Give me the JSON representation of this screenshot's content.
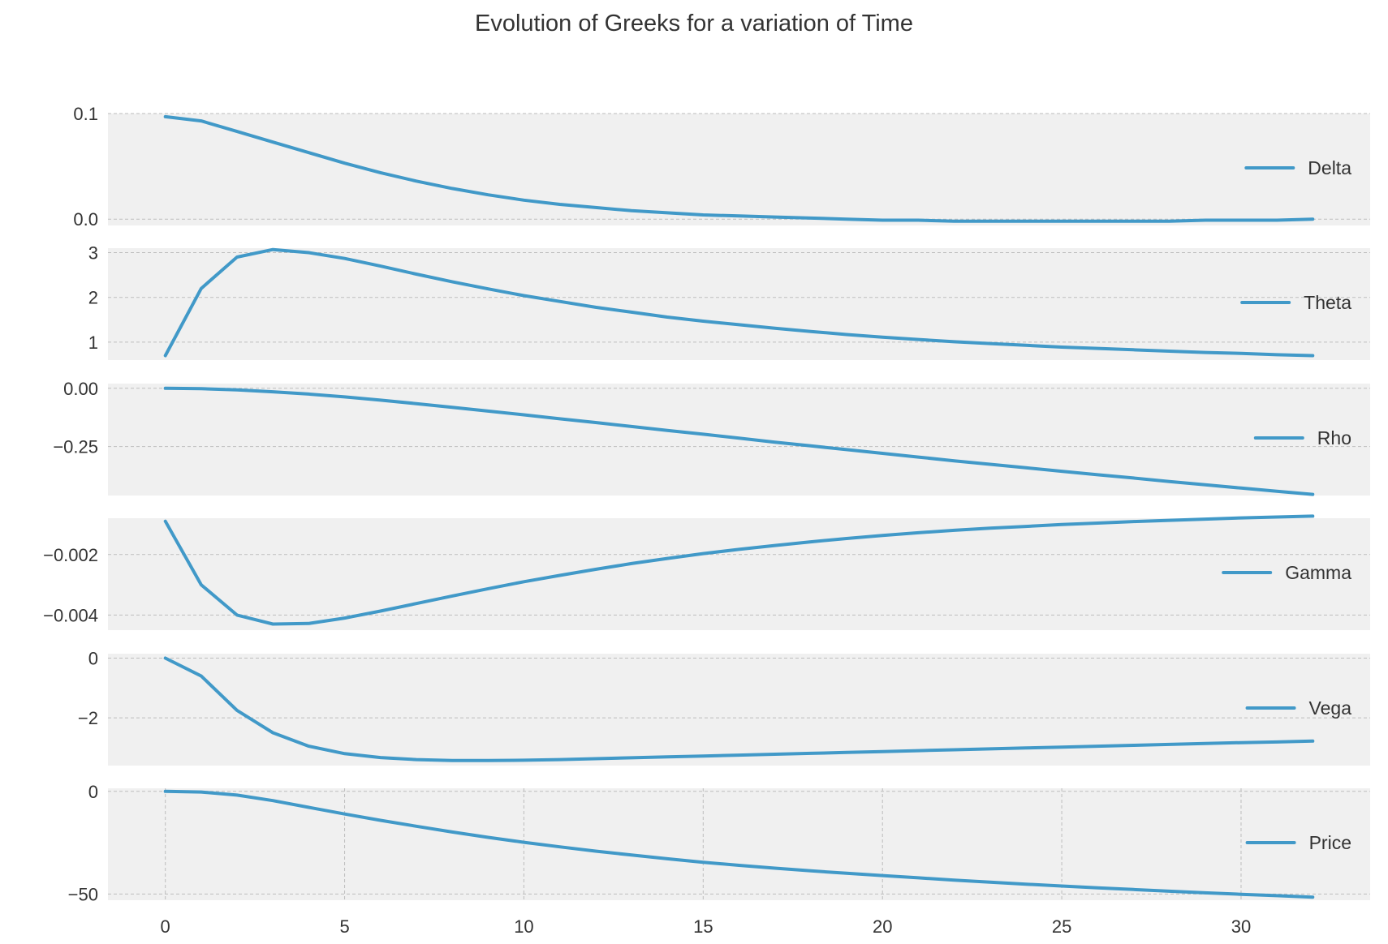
{
  "title": "Evolution of Greeks for a variation of Time",
  "colors": {
    "line": "#4199c8",
    "panel_bg": "#f0f0f0",
    "grid": "#bdbdbd",
    "text": "#333333"
  },
  "x_ticks": [
    0,
    5,
    10,
    15,
    20,
    25,
    30
  ],
  "chart_data": [
    {
      "type": "line",
      "series": [
        {
          "name": "Delta",
          "x": [
            0,
            1,
            2,
            3,
            4,
            5,
            6,
            7,
            8,
            9,
            10,
            11,
            12,
            13,
            14,
            15,
            16,
            17,
            18,
            19,
            20,
            21,
            22,
            23,
            24,
            25,
            26,
            27,
            28,
            29,
            30,
            31,
            32
          ],
          "values": [
            0.097,
            0.093,
            0.083,
            0.073,
            0.063,
            0.053,
            0.044,
            0.036,
            0.029,
            0.023,
            0.018,
            0.014,
            0.011,
            0.008,
            0.006,
            0.004,
            0.003,
            0.002,
            0.001,
            0.0,
            -0.001,
            -0.001,
            -0.002,
            -0.002,
            -0.002,
            -0.002,
            -0.002,
            -0.002,
            -0.002,
            -0.001,
            -0.001,
            -0.001,
            0.0
          ]
        }
      ],
      "yticks": [
        0.0,
        0.1
      ],
      "ytick_labels": [
        "0.0",
        "0.1"
      ],
      "ylim": [
        -0.006,
        0.1
      ],
      "legend": "right",
      "grid": true
    },
    {
      "type": "line",
      "series": [
        {
          "name": "Theta",
          "x": [
            0,
            1,
            2,
            3,
            4,
            5,
            6,
            7,
            8,
            9,
            10,
            11,
            12,
            13,
            14,
            15,
            16,
            17,
            18,
            19,
            20,
            21,
            22,
            23,
            24,
            25,
            26,
            27,
            28,
            29,
            30,
            31,
            32
          ],
          "values": [
            0.7,
            2.2,
            2.9,
            3.07,
            3.0,
            2.87,
            2.7,
            2.52,
            2.35,
            2.19,
            2.04,
            1.91,
            1.78,
            1.67,
            1.56,
            1.47,
            1.39,
            1.31,
            1.24,
            1.17,
            1.11,
            1.06,
            1.01,
            0.97,
            0.93,
            0.89,
            0.86,
            0.83,
            0.8,
            0.77,
            0.75,
            0.72,
            0.7
          ]
        }
      ],
      "yticks": [
        1,
        2,
        3
      ],
      "ytick_labels": [
        "1",
        "2",
        "3"
      ],
      "ylim": [
        0.6,
        3.1
      ],
      "legend": "right",
      "grid": true
    },
    {
      "type": "line",
      "series": [
        {
          "name": "Rho",
          "x": [
            0,
            1,
            2,
            3,
            4,
            5,
            6,
            7,
            8,
            9,
            10,
            11,
            12,
            13,
            14,
            15,
            16,
            17,
            18,
            19,
            20,
            21,
            22,
            23,
            24,
            25,
            26,
            27,
            28,
            29,
            30,
            31,
            32
          ],
          "values": [
            0.0,
            -0.002,
            -0.007,
            -0.015,
            -0.025,
            -0.037,
            -0.051,
            -0.066,
            -0.082,
            -0.098,
            -0.114,
            -0.131,
            -0.147,
            -0.164,
            -0.181,
            -0.197,
            -0.214,
            -0.231,
            -0.247,
            -0.263,
            -0.279,
            -0.295,
            -0.311,
            -0.326,
            -0.341,
            -0.356,
            -0.371,
            -0.385,
            -0.4,
            -0.414,
            -0.428,
            -0.442,
            -0.455
          ]
        }
      ],
      "yticks": [
        -0.25,
        0.0
      ],
      "ytick_labels": [
        "−0.25",
        "0.00"
      ],
      "ylim": [
        -0.46,
        0.02
      ],
      "legend": "right",
      "grid": true
    },
    {
      "type": "line",
      "series": [
        {
          "name": "Gamma",
          "x": [
            0,
            1,
            2,
            3,
            4,
            5,
            6,
            7,
            8,
            9,
            10,
            11,
            12,
            13,
            14,
            15,
            16,
            17,
            18,
            19,
            20,
            21,
            22,
            23,
            24,
            25,
            26,
            27,
            28,
            29,
            30,
            31,
            32
          ],
          "values": [
            -0.0009,
            -0.003,
            -0.004,
            -0.0043,
            -0.00428,
            -0.0041,
            -0.00387,
            -0.00362,
            -0.00337,
            -0.00313,
            -0.0029,
            -0.00269,
            -0.00249,
            -0.0023,
            -0.00213,
            -0.00197,
            -0.00183,
            -0.0017,
            -0.00158,
            -0.00147,
            -0.00137,
            -0.00128,
            -0.0012,
            -0.00113,
            -0.00107,
            -0.00101,
            -0.00096,
            -0.00091,
            -0.00087,
            -0.00083,
            -0.00079,
            -0.00076,
            -0.00073
          ]
        }
      ],
      "yticks": [
        -0.004,
        -0.002
      ],
      "ytick_labels": [
        "−0.004",
        "−0.002"
      ],
      "ylim": [
        -0.0045,
        -0.0008
      ],
      "legend": "right",
      "grid": true
    },
    {
      "type": "line",
      "series": [
        {
          "name": "Vega",
          "x": [
            0,
            1,
            2,
            3,
            4,
            5,
            6,
            7,
            8,
            9,
            10,
            11,
            12,
            13,
            14,
            15,
            16,
            17,
            18,
            19,
            20,
            21,
            22,
            23,
            24,
            25,
            26,
            27,
            28,
            29,
            30,
            31,
            32
          ],
          "values": [
            0.0,
            -0.6,
            -1.75,
            -2.5,
            -2.95,
            -3.2,
            -3.33,
            -3.4,
            -3.43,
            -3.43,
            -3.42,
            -3.4,
            -3.37,
            -3.34,
            -3.31,
            -3.28,
            -3.25,
            -3.22,
            -3.19,
            -3.16,
            -3.13,
            -3.1,
            -3.07,
            -3.04,
            -3.01,
            -2.98,
            -2.95,
            -2.92,
            -2.89,
            -2.86,
            -2.83,
            -2.81,
            -2.78
          ]
        }
      ],
      "yticks": [
        -2,
        0
      ],
      "ytick_labels": [
        "−2",
        "0"
      ],
      "ylim": [
        -3.6,
        0.15
      ],
      "legend": "right",
      "grid": true
    },
    {
      "type": "line",
      "series": [
        {
          "name": "Price",
          "x": [
            0,
            1,
            2,
            3,
            4,
            5,
            6,
            7,
            8,
            9,
            10,
            11,
            12,
            13,
            14,
            15,
            16,
            17,
            18,
            19,
            20,
            21,
            22,
            23,
            24,
            25,
            26,
            27,
            28,
            29,
            30,
            31,
            32
          ],
          "values": [
            0.0,
            -0.3,
            -1.8,
            -4.5,
            -7.8,
            -11.0,
            -14.1,
            -17.0,
            -19.8,
            -22.4,
            -24.8,
            -27.0,
            -29.1,
            -31.0,
            -32.8,
            -34.5,
            -36.0,
            -37.4,
            -38.7,
            -39.9,
            -41.0,
            -42.1,
            -43.2,
            -44.2,
            -45.2,
            -46.1,
            -47.0,
            -47.8,
            -48.6,
            -49.4,
            -50.1,
            -50.8,
            -51.5
          ]
        }
      ],
      "yticks": [
        -50,
        0
      ],
      "ytick_labels": [
        "−50",
        "0"
      ],
      "ylim": [
        -53,
        1.5
      ],
      "legend": "right",
      "grid": true
    }
  ]
}
